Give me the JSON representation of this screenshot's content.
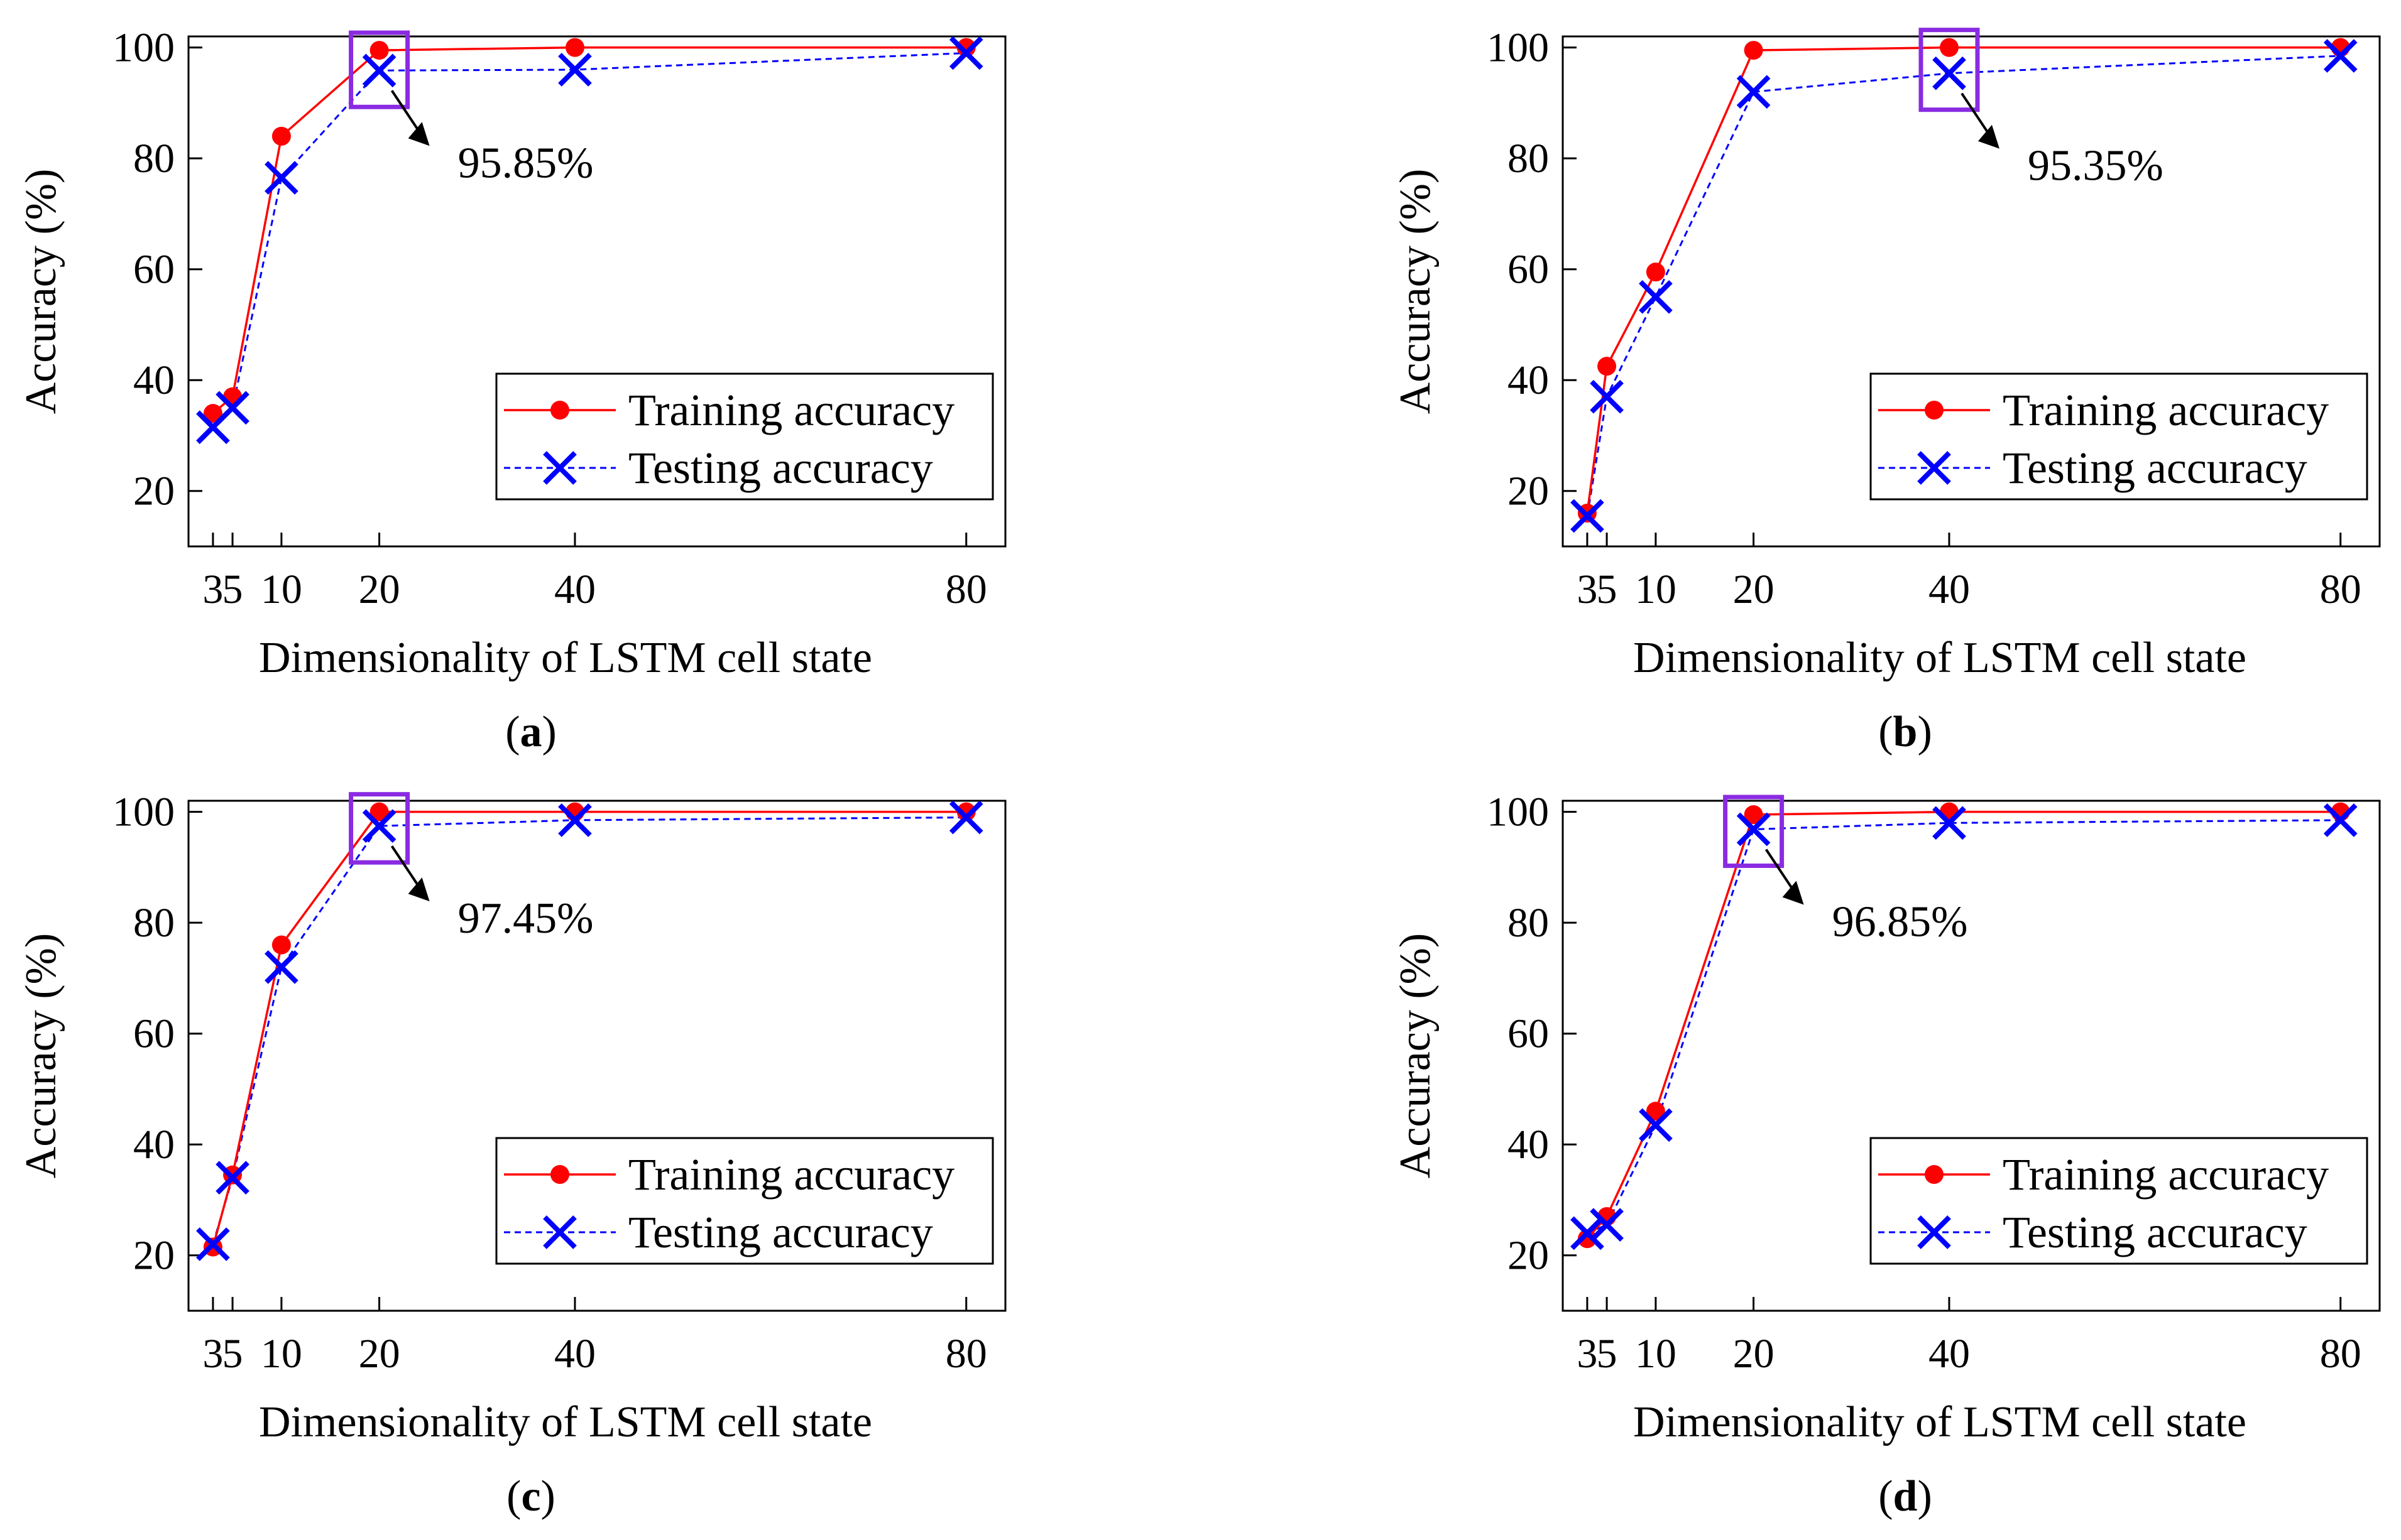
{
  "colors": {
    "train": "#ff0000",
    "test": "#0000ff",
    "highlight": "#8a2be2",
    "axis": "#000000"
  },
  "chart_data": [
    {
      "type": "line",
      "panel": "a",
      "xlabel": "Dimensionality of  LSTM cell state",
      "ylabel": "Accuracy (%)",
      "x": [
        3,
        5,
        10,
        20,
        40,
        80
      ],
      "xticks": [
        "3",
        "5",
        "10",
        "20",
        "40",
        "80"
      ],
      "yticks": [
        20,
        40,
        60,
        80,
        100
      ],
      "ylim": [
        10,
        102
      ],
      "series": [
        {
          "name": "Training accuracy",
          "values": [
            34,
            37,
            84,
            99.5,
            100,
            100
          ]
        },
        {
          "name": "Testing accuracy",
          "values": [
            31.5,
            35,
            76.5,
            95.85,
            96,
            99
          ]
        }
      ],
      "highlight_x": 20,
      "annotation": "95.85%"
    },
    {
      "type": "line",
      "panel": "b",
      "xlabel": "Dimensionality of  LSTM cell state",
      "ylabel": "Accuracy (%)",
      "x": [
        3,
        5,
        10,
        20,
        40,
        80
      ],
      "xticks": [
        "3",
        "5",
        "10",
        "20",
        "40",
        "80"
      ],
      "yticks": [
        20,
        40,
        60,
        80,
        100
      ],
      "ylim": [
        10,
        102
      ],
      "series": [
        {
          "name": "Training accuracy",
          "values": [
            16,
            42.5,
            59.5,
            99.5,
            100,
            100
          ]
        },
        {
          "name": "Testing accuracy",
          "values": [
            15.5,
            37,
            55,
            92,
            95.35,
            98.5
          ]
        }
      ],
      "highlight_x": 40,
      "annotation": "95.35%"
    },
    {
      "type": "line",
      "panel": "c",
      "xlabel": "Dimensionality of  LSTM cell state",
      "ylabel": "Accuracy (%)",
      "x": [
        3,
        5,
        10,
        20,
        40,
        80
      ],
      "xticks": [
        "3",
        "5",
        "10",
        "20",
        "40",
        "80"
      ],
      "yticks": [
        20,
        40,
        60,
        80,
        100
      ],
      "ylim": [
        10,
        102
      ],
      "series": [
        {
          "name": "Training accuracy",
          "values": [
            21.5,
            34.5,
            76,
            100,
            100,
            100
          ]
        },
        {
          "name": "Testing accuracy",
          "values": [
            22,
            34,
            72,
            97.45,
            98.5,
            99
          ]
        }
      ],
      "highlight_x": 20,
      "annotation": "97.45%"
    },
    {
      "type": "line",
      "panel": "d",
      "xlabel": "Dimensionality of  LSTM cell state",
      "ylabel": "Accuracy (%)",
      "x": [
        3,
        5,
        10,
        20,
        40,
        80
      ],
      "xticks": [
        "3",
        "5",
        "10",
        "20",
        "40",
        "80"
      ],
      "yticks": [
        20,
        40,
        60,
        80,
        100
      ],
      "ylim": [
        10,
        102
      ],
      "series": [
        {
          "name": "Training accuracy",
          "values": [
            23,
            27,
            46,
            99.5,
            100,
            100
          ]
        },
        {
          "name": "Testing accuracy",
          "values": [
            24,
            25.5,
            43.5,
            96.85,
            98,
            98.5
          ]
        }
      ],
      "highlight_x": 20,
      "annotation": "96.85%"
    }
  ]
}
